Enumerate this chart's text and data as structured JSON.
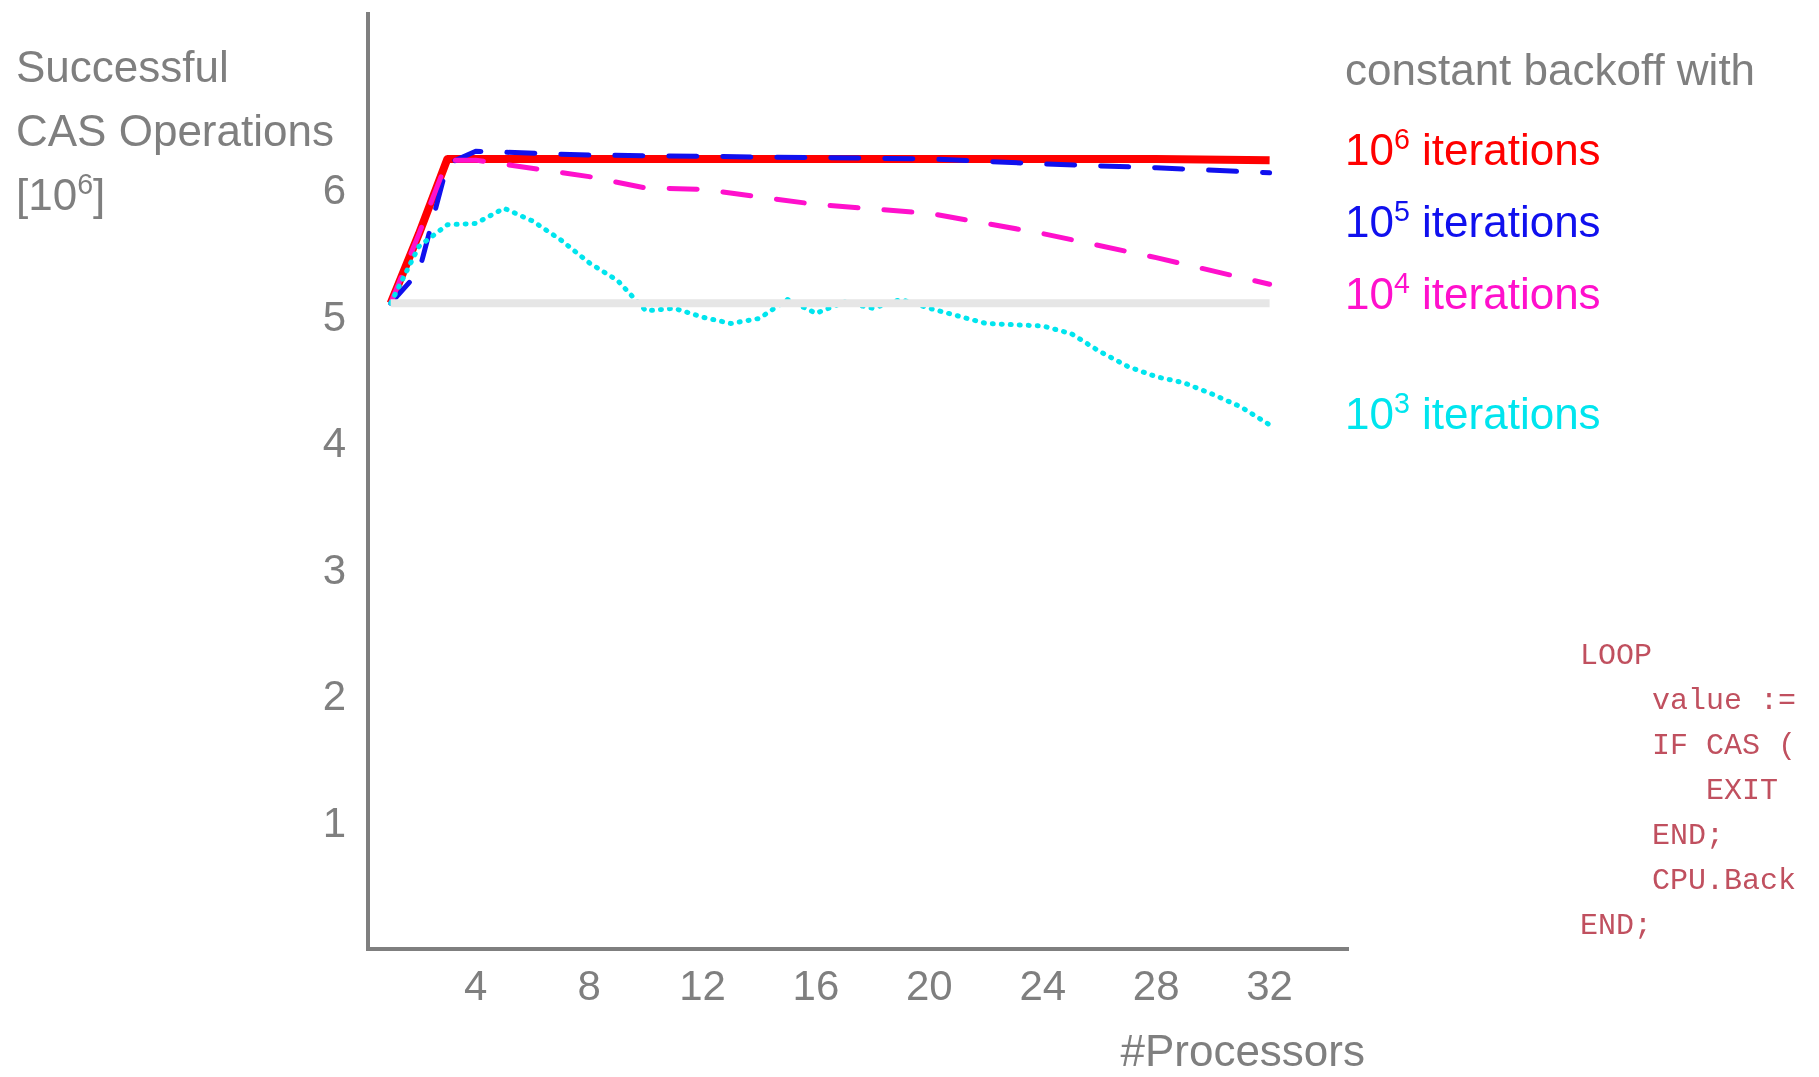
{
  "chart_data": {
    "type": "line",
    "ylabel": "Successful\nCAS Operations\n[10$^{6}$]",
    "xlabel": "#Processors",
    "legend_title": "constant backoff with",
    "legend": "top right",
    "grid": false,
    "xlim": [
      0.2,
      34.8
    ],
    "xticks": [
      4,
      8,
      12,
      16,
      20,
      24,
      28,
      32
    ],
    "ylim": [
      0,
      7.4
    ],
    "yticks": [
      1,
      2,
      3,
      4,
      5,
      6
    ],
    "series": [
      {
        "color": "#e6e6e6",
        "line_style": "solid",
        "x": [
          1,
          32
        ],
        "values": [
          5.1,
          5.1
        ]
      },
      {
        "name": "10$^{3}$ iterations",
        "color": "#00e5ee",
        "line_style": "dotted",
        "x": [
          1,
          2,
          3,
          4,
          5,
          6,
          7,
          8,
          9,
          10,
          11,
          12,
          13,
          14,
          15,
          16,
          17,
          18,
          19,
          20,
          22,
          24,
          25,
          26,
          27,
          28,
          29,
          30,
          31,
          32
        ],
        "values": [
          5.1,
          5.55,
          5.72,
          5.73,
          5.85,
          5.75,
          5.6,
          5.42,
          5.28,
          5.04,
          5.06,
          4.99,
          4.94,
          4.98,
          5.13,
          5.02,
          5.11,
          5.06,
          5.13,
          5.06,
          4.94,
          4.92,
          4.86,
          4.72,
          4.6,
          4.52,
          4.47,
          4.38,
          4.28,
          4.14
        ]
      },
      {
        "name": "10$^{4}$ iterations",
        "color": "#ff10cc",
        "line_style": "dashed",
        "x": [
          1,
          2,
          3,
          4,
          8,
          10,
          12,
          16,
          20,
          24,
          28,
          32
        ],
        "values": [
          5.1,
          5.65,
          6.23,
          6.23,
          6.1,
          6.01,
          6.0,
          5.88,
          5.81,
          5.65,
          5.46,
          5.25
        ]
      },
      {
        "name": "10$^{5}$ iterations",
        "color": "#1010ee",
        "line_style": "dashed",
        "x": [
          1,
          2,
          3,
          4,
          8,
          12,
          16,
          20,
          24,
          28,
          32
        ],
        "values": [
          5.1,
          5.35,
          6.2,
          6.3,
          6.27,
          6.26,
          6.25,
          6.24,
          6.2,
          6.17,
          6.13
        ]
      },
      {
        "name": "10$^{6}$ iterations",
        "color": "#ff0000",
        "line_style": "solid",
        "x": [
          1,
          2,
          3,
          4,
          8,
          12,
          16,
          20,
          24,
          28,
          32
        ],
        "values": [
          5.1,
          5.65,
          6.24,
          6.24,
          6.24,
          6.24,
          6.24,
          6.24,
          6.24,
          6.24,
          6.23
        ]
      }
    ],
    "annotations": [
      "LOOP",
      "    value :=",
      "    IF CAS (",
      "       EXIT",
      "    END;",
      "    CPU.Back",
      "END;"
    ]
  }
}
